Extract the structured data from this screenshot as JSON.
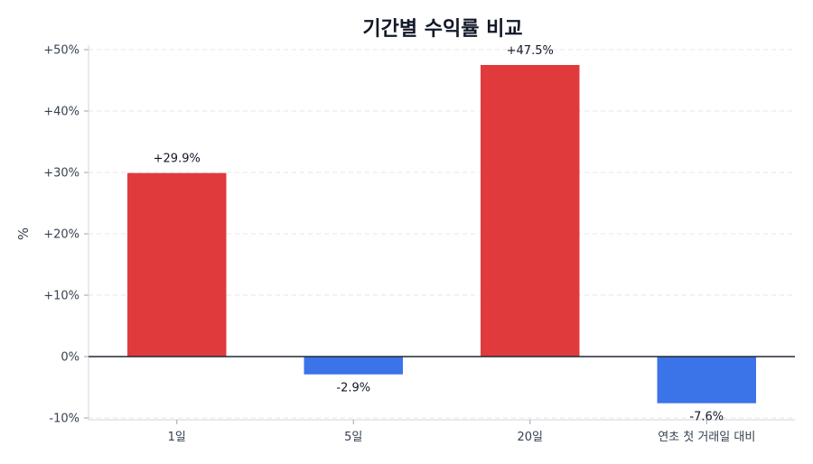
{
  "chart_data": {
    "type": "bar",
    "title": "기간별 수익률 비교",
    "ylabel": "%",
    "xlabel": "",
    "categories": [
      "1일",
      "5일",
      "20일",
      "연초 첫 거래일 대비"
    ],
    "values": [
      29.9,
      -2.9,
      47.5,
      -7.6
    ],
    "value_labels": [
      "+29.9%",
      "-2.9%",
      "+47.5%",
      "-7.6%"
    ],
    "ylim": [
      -10,
      50
    ],
    "yticks": [
      -10,
      0,
      10,
      20,
      30,
      40,
      50
    ],
    "ytick_labels": [
      "-10%",
      "0%",
      "+10%",
      "+20%",
      "+30%",
      "+40%",
      "+50%"
    ],
    "grid": true,
    "colors": {
      "positive": "#e03a3c",
      "negative": "#3b73e8",
      "zero_line": "#1f2937",
      "grid": "#e5e7eb"
    }
  }
}
